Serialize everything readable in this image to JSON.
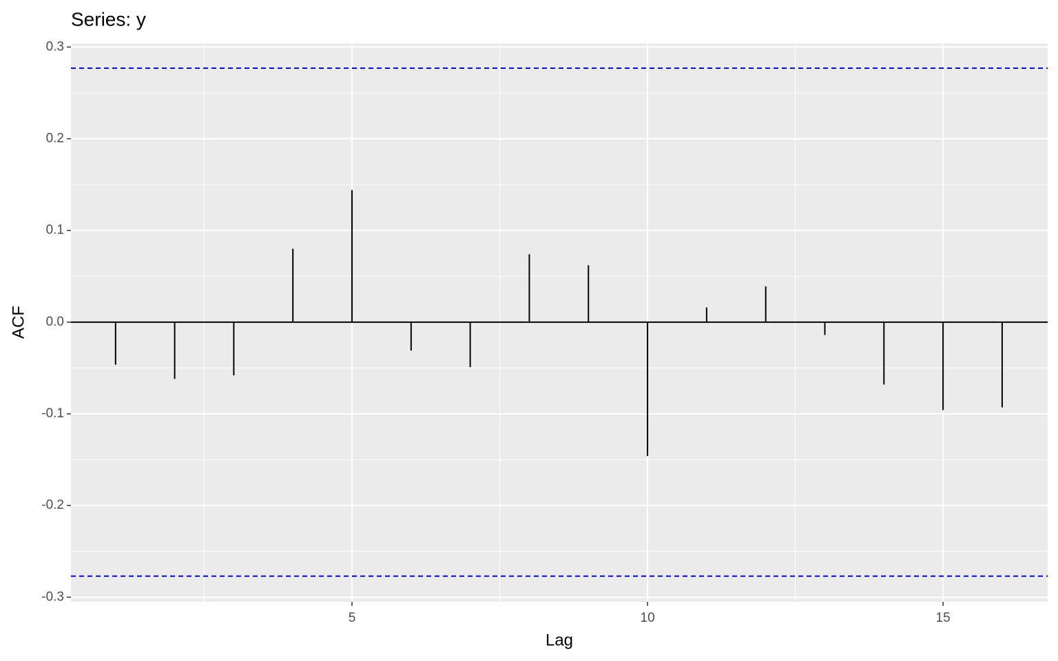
{
  "chart_data": {
    "type": "stem",
    "title": "Series: y",
    "x_label": "Lag",
    "y_label": "ACF",
    "x": [
      1,
      2,
      3,
      4,
      5,
      6,
      7,
      8,
      9,
      10,
      11,
      12,
      13,
      14,
      15,
      16
    ],
    "values": [
      -0.0465,
      -0.062,
      -0.058,
      0.08,
      0.144,
      -0.031,
      -0.049,
      0.074,
      0.062,
      -0.146,
      0.016,
      0.039,
      -0.014,
      -0.068,
      -0.096,
      -0.093
    ],
    "color": "#000000",
    "conf_limits": [
      -0.277,
      0.277
    ],
    "conf_color": "#0000ff",
    "xlim": [
      0.245,
      16.77
    ],
    "xticks": [
      5,
      10,
      15
    ],
    "ylim": [
      -0.305,
      0.304
    ],
    "yticks": [
      -0.3,
      -0.2,
      -0.1,
      {
        "value": 0,
        "label": "0.0"
      },
      0.1,
      0.2,
      0.3
    ],
    "grid": true
  }
}
